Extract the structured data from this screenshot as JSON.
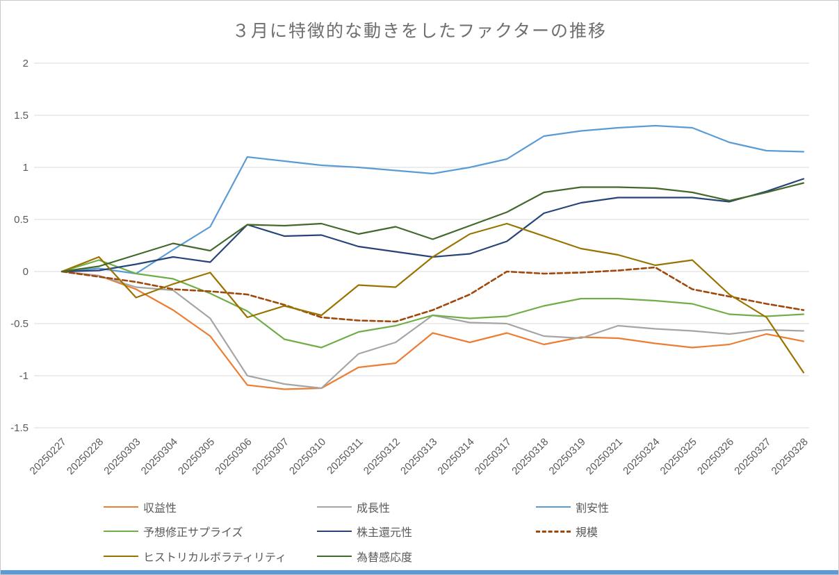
{
  "chart_data": {
    "type": "line",
    "title": "３月に特徴的な動きをしたファクターの推移",
    "xlabel": "",
    "ylabel": "",
    "ylim": [
      -1.5,
      2
    ],
    "y_ticks": [
      2,
      1.5,
      1,
      0.5,
      0,
      -0.5,
      -1,
      -1.5
    ],
    "grid": true,
    "legend_position": "bottom",
    "x_labels": [
      "20250227",
      "20250228",
      "20250303",
      "20250304",
      "20250305",
      "20250306",
      "20250307",
      "20250310",
      "20250311",
      "20250312",
      "20250313",
      "20250314",
      "20250317",
      "20250318",
      "20250319",
      "20250321",
      "20250324",
      "20250325",
      "20250326",
      "20250327",
      "20250328"
    ],
    "series": [
      {
        "name": "収益性",
        "color": "#ED7D31",
        "dash": false,
        "values": [
          0,
          -0.04,
          -0.17,
          -0.37,
          -0.62,
          -1.09,
          -1.13,
          -1.12,
          -0.92,
          -0.88,
          -0.59,
          -0.68,
          -0.59,
          -0.7,
          -0.63,
          -0.64,
          -0.69,
          -0.73,
          -0.7,
          -0.6,
          -0.67
        ]
      },
      {
        "name": "成長性",
        "color": "#A5A5A5",
        "dash": false,
        "values": [
          0,
          -0.04,
          -0.15,
          -0.18,
          -0.45,
          -1.0,
          -1.08,
          -1.12,
          -0.79,
          -0.68,
          -0.42,
          -0.49,
          -0.5,
          -0.62,
          -0.64,
          -0.52,
          -0.55,
          -0.57,
          -0.6,
          -0.56,
          -0.57
        ]
      },
      {
        "name": "割安性",
        "color": "#5B9BD5",
        "dash": false,
        "values": [
          0,
          0.03,
          -0.02,
          0.21,
          0.43,
          1.1,
          1.06,
          1.02,
          1.0,
          0.97,
          0.94,
          1.0,
          1.08,
          1.3,
          1.35,
          1.38,
          1.4,
          1.38,
          1.24,
          1.16,
          1.15
        ]
      },
      {
        "name": "予想修正サプライズ",
        "color": "#70AD47",
        "dash": false,
        "values": [
          0,
          0.11,
          -0.02,
          -0.07,
          -0.21,
          -0.38,
          -0.65,
          -0.73,
          -0.58,
          -0.52,
          -0.42,
          -0.45,
          -0.43,
          -0.33,
          -0.26,
          -0.26,
          -0.28,
          -0.31,
          -0.41,
          -0.43,
          -0.41
        ]
      },
      {
        "name": "株主還元性",
        "color": "#264478",
        "dash": false,
        "values": [
          0,
          0.01,
          0.07,
          0.14,
          0.09,
          0.45,
          0.34,
          0.35,
          0.24,
          0.19,
          0.14,
          0.17,
          0.29,
          0.56,
          0.66,
          0.71,
          0.71,
          0.71,
          0.67,
          0.77,
          0.89
        ]
      },
      {
        "name": "規模",
        "color": "#9E480E",
        "dash": true,
        "values": [
          0,
          -0.05,
          -0.1,
          -0.17,
          -0.19,
          -0.22,
          -0.32,
          -0.44,
          -0.47,
          -0.48,
          -0.37,
          -0.22,
          0.0,
          -0.02,
          -0.01,
          0.01,
          0.04,
          -0.17,
          -0.24,
          -0.31,
          -0.37
        ]
      },
      {
        "name": "ヒストリカルボラティリティ",
        "color": "#997300",
        "dash": false,
        "values": [
          0,
          0.14,
          -0.25,
          -0.12,
          -0.01,
          -0.44,
          -0.33,
          -0.42,
          -0.13,
          -0.15,
          0.14,
          0.36,
          0.46,
          0.34,
          0.22,
          0.16,
          0.06,
          0.11,
          -0.22,
          -0.44,
          -0.97
        ]
      },
      {
        "name": "為替感応度",
        "color": "#43682B",
        "dash": false,
        "values": [
          0,
          0.05,
          0.16,
          0.27,
          0.2,
          0.45,
          0.44,
          0.46,
          0.36,
          0.43,
          0.31,
          0.44,
          0.57,
          0.76,
          0.81,
          0.81,
          0.8,
          0.76,
          0.68,
          0.76,
          0.85
        ]
      }
    ]
  },
  "style": {
    "grid_color": "#d9d9d9",
    "tick_label_color": "#595959",
    "title_color": "#6e6e6e",
    "bottom_strip_color": "#5b9bd5"
  }
}
